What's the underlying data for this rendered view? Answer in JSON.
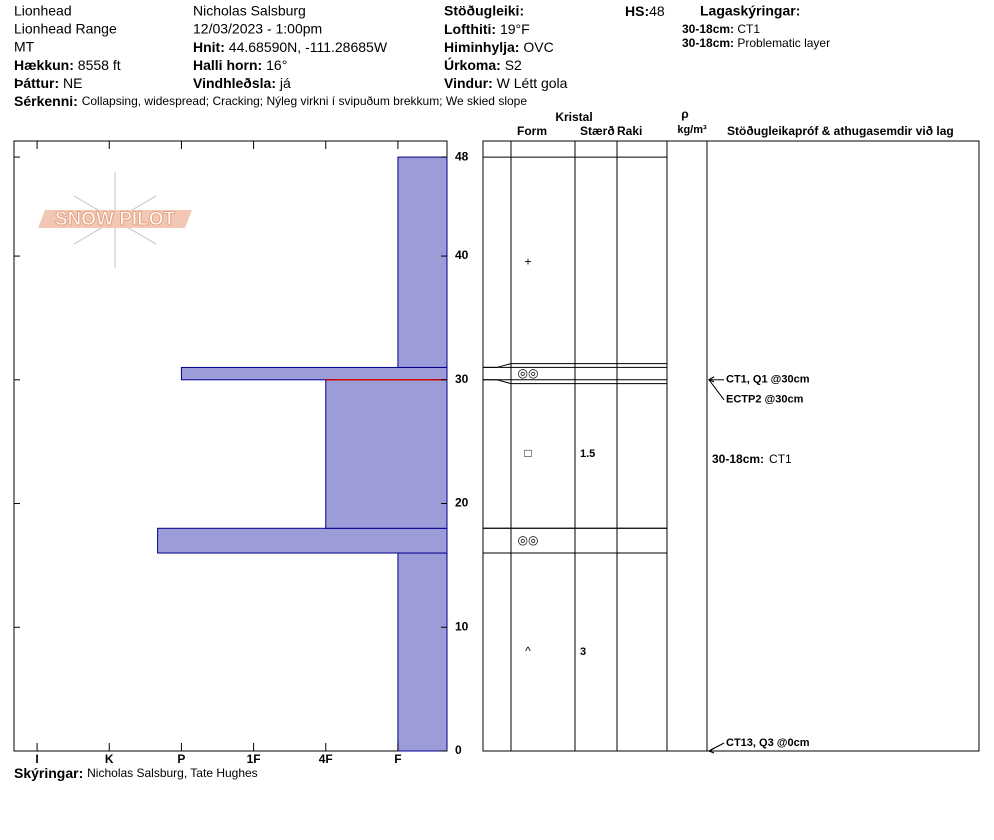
{
  "header": {
    "location": "Lionhead",
    "range": "Lionhead Range",
    "state": "MT",
    "elevation": {
      "label": "Hækkun:",
      "value": "8558 ft"
    },
    "aspect": {
      "label": "Þáttur:",
      "value": "NE"
    },
    "observer": "Nicholas Salsburg",
    "datetime": "12/03/2023 - 1:00pm",
    "coords": {
      "label": "Hnit:",
      "value": "44.68590N, -111.28685W"
    },
    "slope": {
      "label": "Halli horn:",
      "value": "16°"
    },
    "wind_loading": {
      "label": "Vindhleðsla:",
      "value": "já"
    },
    "stability": {
      "label": "Stöðugleiki:"
    },
    "air_temp": {
      "label": "Lofthiti:",
      "value": "19°F"
    },
    "sky": {
      "label": "Himinhylja:",
      "value": "OVC"
    },
    "precip": {
      "label": "Úrkoma:",
      "value": "S2"
    },
    "wind": {
      "label": "Vindur:",
      "value": "W Létt gola"
    },
    "hs": {
      "label": "HS:",
      "value": 48
    },
    "layer_notes": {
      "label": "Lagaskýringar:",
      "items": [
        {
          "label": "30-18cm:",
          "value": "CT1"
        },
        {
          "label": "30-18cm:",
          "value": "Problematic layer"
        }
      ]
    },
    "features": {
      "label": "Sérkenni:",
      "value": "Collapsing, widespread;  Cracking;  Nýleg virkni í svipuðum brekkum;  We skied slope"
    }
  },
  "footer": {
    "label": "Skýringar:",
    "value": "Nicholas Salsburg, Tate Hughes"
  },
  "logo": "SNOW PILOT",
  "chart_data": {
    "type": "snow_profile",
    "ylim": [
      0,
      49.3
    ],
    "yticks": [
      0,
      10,
      20,
      30,
      40,
      48
    ],
    "xlim": [
      6.32,
      0.32
    ],
    "xticks": [
      {
        "value": 6,
        "label": "I"
      },
      {
        "value": 5,
        "label": "K"
      },
      {
        "value": 4,
        "label": "P"
      },
      {
        "value": 3,
        "label": "1F"
      },
      {
        "value": 2,
        "label": "4F"
      },
      {
        "value": 1,
        "label": "F"
      }
    ],
    "color": "#9c9cd8",
    "edge_color": "#00008b",
    "critical_depth": 30,
    "critical_color": "#cc0000",
    "layers": [
      {
        "bottom": 0,
        "top": 16,
        "hardness": 1,
        "form": "^",
        "size": 3
      },
      {
        "bottom": 16,
        "top": 18,
        "hardness": 4.33,
        "form": "◎◎"
      },
      {
        "bottom": 18,
        "top": 30,
        "hardness": 2,
        "form": "□",
        "size": 1.5
      },
      {
        "bottom": 30,
        "top": 31,
        "hardness": 4,
        "form": "◎◎"
      },
      {
        "bottom": 31,
        "top": 48,
        "hardness": 1,
        "form": "+"
      }
    ],
    "columns": {
      "group": "Kristal",
      "form": "Form",
      "size": "Stærð",
      "moisture": "Raki",
      "density_symbol": "ρ",
      "density_unit": "kg/m³",
      "tests": "Stöðugleikapróf & athugasemdir við lag"
    },
    "tests": [
      {
        "depth": 30,
        "label": "CT1, Q1 @30cm"
      },
      {
        "depth": 30,
        "label": "ECTP2 @30cm"
      },
      {
        "depth": 0,
        "label": "CT13, Q3 @0cm"
      }
    ],
    "comments": [
      {
        "top": 30,
        "bottom": 18,
        "label": "30-18cm:",
        "value": "CT1"
      }
    ]
  }
}
